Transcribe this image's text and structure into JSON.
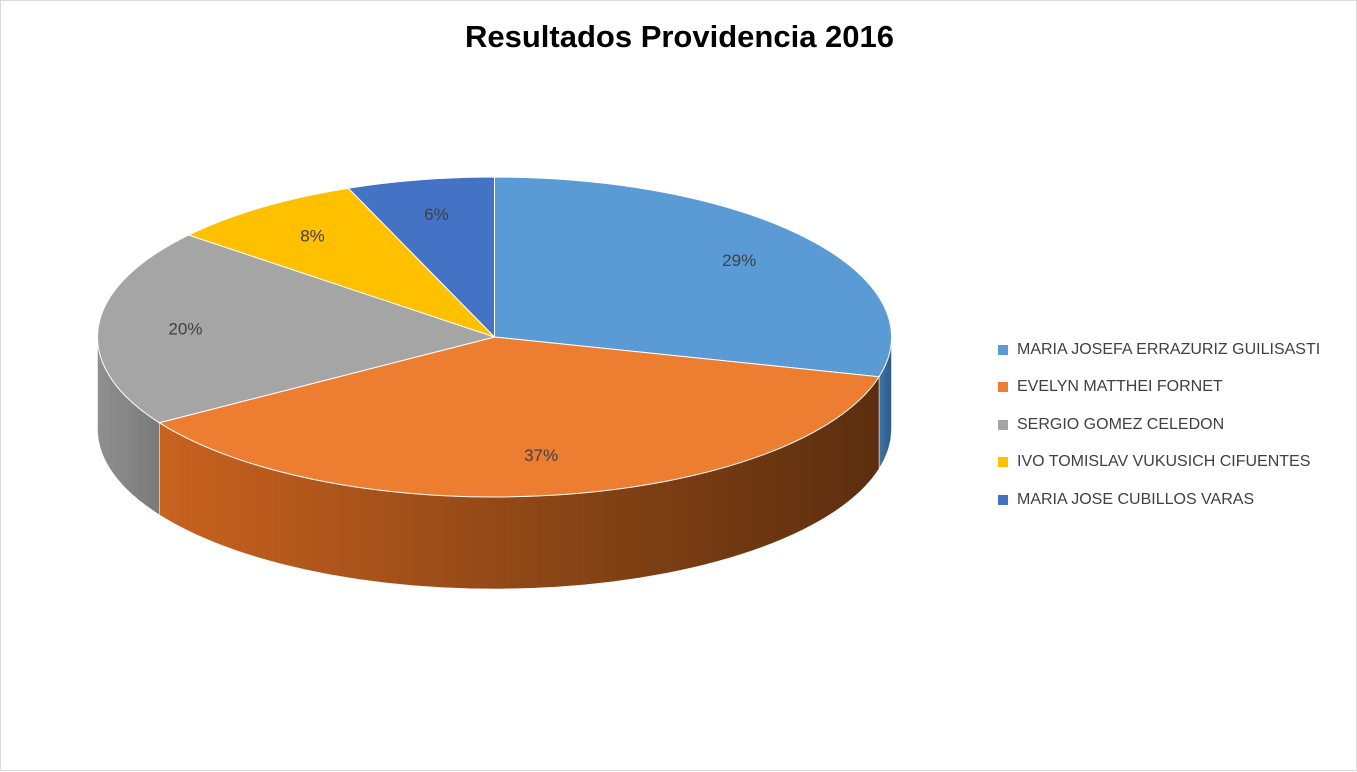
{
  "chart_data": {
    "type": "pie",
    "title": "Resultados Providencia 2016",
    "categories": [
      "MARIA JOSEFA ERRAZURIZ GUILISASTI",
      "EVELYN MATTHEI FORNET",
      "SERGIO GOMEZ CELEDON",
      "IVO TOMISLAV VUKUSICH CIFUENTES",
      "MARIA JOSE CUBILLOS VARAS"
    ],
    "values": [
      29,
      37,
      20,
      8,
      6
    ],
    "data_labels": [
      "29%",
      "37%",
      "20%",
      "8%",
      "6%"
    ],
    "colors": [
      "#5b9bd5",
      "#ed7d31",
      "#a5a5a5",
      "#ffc000",
      "#4472c4"
    ],
    "legend_position": "right",
    "three_d": true
  }
}
